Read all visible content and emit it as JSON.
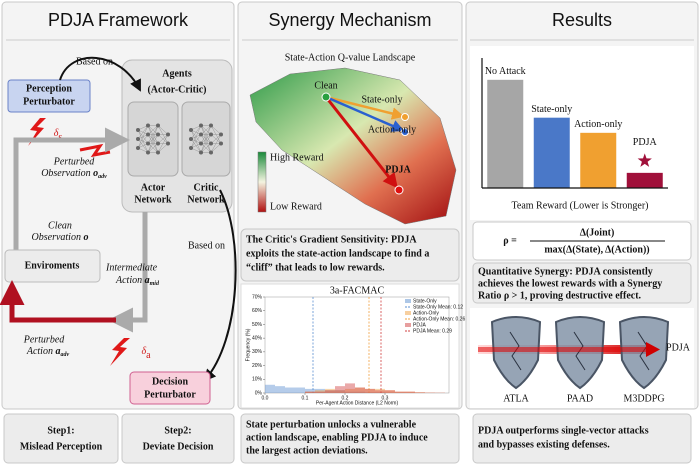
{
  "framework": {
    "title": "PDJA Framework",
    "perception_perturbator": [
      "Perception",
      "Perturbator"
    ],
    "based_on_top": "Based on",
    "agents": [
      "Agents",
      "(Actor-Critic)"
    ],
    "actor": [
      "Actor",
      "Network"
    ],
    "critic": [
      "Critic",
      "Network"
    ],
    "delta_s": {
      "symbol": "δ",
      "sub": "s"
    },
    "perturbed_observation": {
      "line1": "Perturbed",
      "line2": "Observation",
      "symbol": "o",
      "sub": "adv"
    },
    "clean_observation": {
      "line1": "Clean",
      "line2": "Observation",
      "symbol": "o"
    },
    "environments": "Enviroments",
    "intermediate_action": {
      "line1": "Intermediate",
      "line2": "Action",
      "symbol": "a",
      "sub": "mid"
    },
    "based_on_bottom": "Based on",
    "perturbed_action": {
      "line1": "Perturbed",
      "line2": "Action",
      "symbol": "a",
      "sub": "adv"
    },
    "delta_a": {
      "symbol": "δ",
      "sub": "a"
    },
    "decision_perturbator": [
      "Decision",
      "Perturbator"
    ],
    "steps": [
      [
        "Step1:",
        "Mislead Perception"
      ],
      [
        "Step2:",
        "Deviate Decision"
      ]
    ]
  },
  "synergy": {
    "title": "Synergy Mechanism",
    "landscape_title": "State-Action Q-value Landscape",
    "points": {
      "clean": "Clean",
      "state_only": "State-only",
      "action_only": "Action-only",
      "pdja": "PDJA"
    },
    "high_reward": "High Reward",
    "low_reward": "Low Reward",
    "critic_box": [
      "The Critic's Gradient Sensitivity: PDJA",
      "exploits the state-action landscape to find a",
      "“cliff” that leads to low rewards."
    ],
    "histogram": {
      "type": "histogram",
      "title": "3a-FACMAC",
      "xlabel": "Per-Agent Action Distance (L2 Norm)",
      "ylabel": "Frequency (%)",
      "bins": [
        0,
        0.025,
        0.05,
        0.075,
        0.1,
        0.125,
        0.15,
        0.175,
        0.2,
        0.225,
        0.25,
        0.275,
        0.3,
        0.325,
        0.35,
        0.375,
        0.4,
        0.425,
        0.45
      ],
      "series": [
        {
          "name": "State-Only",
          "color": "#5b8fd0",
          "values": [
            6,
            5,
            4,
            4,
            3,
            3,
            2,
            2,
            1,
            1,
            0.5,
            0.5,
            0.3,
            0.2,
            0.1,
            0.1,
            0,
            0
          ],
          "mean": 0.12,
          "mean_label": "State-Only Mean: 0.12"
        },
        {
          "name": "Action-Only",
          "color": "#f0a040",
          "values": [
            0,
            0,
            0,
            0,
            1,
            2,
            3,
            2,
            3,
            4,
            3,
            3,
            2,
            1,
            1,
            0.5,
            0.2,
            0.1
          ],
          "mean": 0.26,
          "mean_label": "Action-Only Mean: 0.26"
        },
        {
          "name": "PDJA",
          "color": "#d04040",
          "values": [
            0,
            0,
            0,
            0,
            1,
            1,
            2,
            5,
            7,
            4,
            3,
            2,
            2,
            1,
            1,
            0.5,
            0.3,
            0.2
          ],
          "mean": 0.29,
          "mean_label": "PDJA Mean: 0.29"
        }
      ],
      "xlim": [
        0,
        0.46
      ],
      "ylim": [
        0,
        70
      ],
      "xticks": [
        {
          "value": 0,
          "label": "0.0"
        },
        0.1,
        0.2,
        0.3
      ],
      "yticks": [
        {
          "value": 0,
          "label": "0%"
        },
        {
          "value": 10,
          "label": "10%"
        },
        {
          "value": 20,
          "label": "20%"
        },
        {
          "value": 30,
          "label": "30%"
        },
        {
          "value": 40,
          "label": "40%"
        },
        {
          "value": 50,
          "label": "50%"
        },
        {
          "value": 60,
          "label": "60%"
        },
        {
          "value": 70,
          "label": "70%"
        }
      ]
    },
    "bottom": [
      "State perturbation unlocks a vulnerable",
      "action landscape, enabling PDJA to induce",
      "the largest action deviations."
    ]
  },
  "results": {
    "title": "Results",
    "chart": {
      "type": "bar",
      "categories": [
        "No Attack",
        "State-only",
        "Action-only",
        "PDJA"
      ],
      "values": [
        100,
        65,
        51,
        14
      ],
      "colors": [
        "#a6a6a6",
        "#4a78c8",
        "#f0a030",
        "#a0103a"
      ],
      "ylim": [
        0,
        110
      ],
      "xlabel": "Team Reward (Lower is Stronger)"
    },
    "formula": {
      "lhs": "ρ =",
      "numerator": "Δ(Joint)",
      "denominator": "max(Δ(State), Δ(Action))"
    },
    "synergy_box": [
      "Quantitative Synergy: PDJA consistently",
      "achieves the lowest rewards with a Synergy",
      "Ratio ρ > 1, proving destructive effect."
    ],
    "defenses": [
      "ATLA",
      "PAAD",
      "M3DDPG"
    ],
    "attack": "PDJA",
    "bottom": [
      "PDJA outperforms single-vector attacks",
      "and bypasses existing defenses."
    ]
  }
}
